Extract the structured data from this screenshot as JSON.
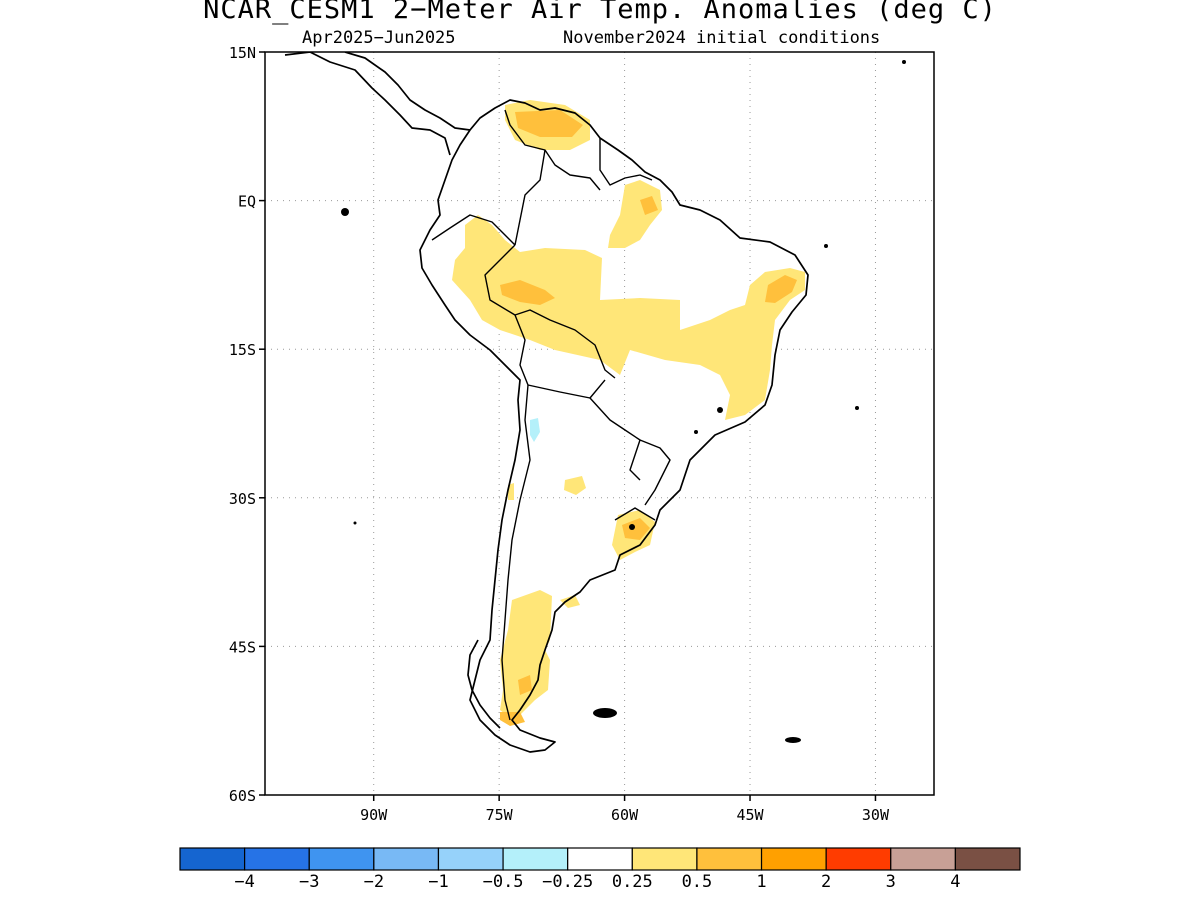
{
  "title": "NCAR_CESM1 2−Meter Air Temp. Anomalies (deg C)",
  "subtitle_left": "Apr2025−Jun2025",
  "subtitle_right": "November2024 initial conditions",
  "map": {
    "region": "South America",
    "lon_range": [
      -103,
      -23
    ],
    "lat_range": [
      -60,
      15
    ],
    "grid": "dotted",
    "y_ticks": [
      {
        "lat": 15,
        "label": "15N"
      },
      {
        "lat": 0,
        "label": "EQ"
      },
      {
        "lat": -15,
        "label": "15S"
      },
      {
        "lat": -30,
        "label": "30S"
      },
      {
        "lat": -45,
        "label": "45S"
      },
      {
        "lat": -60,
        "label": "60S"
      }
    ],
    "x_ticks": [
      {
        "lon": -90,
        "label": "90W"
      },
      {
        "lon": -75,
        "label": "75W"
      },
      {
        "lon": -60,
        "label": "60W"
      },
      {
        "lon": -45,
        "label": "45W"
      },
      {
        "lon": -30,
        "label": "30W"
      }
    ]
  },
  "colorbar": {
    "colors": [
      "#1565d0",
      "#2673e6",
      "#3f94f0",
      "#78b9f5",
      "#96d2fa",
      "#b4f0fa",
      "#ffffff",
      "#ffe678",
      "#ffc03c",
      "#ffa000",
      "#ff3c00",
      "#c8a096",
      "#7a5044"
    ],
    "labels": [
      "−4",
      "−3",
      "−2",
      "−1",
      "−0.5",
      "−0.25",
      "0.25",
      "0.5",
      "1",
      "2",
      "3",
      "4"
    ]
  },
  "legend_colors": {
    "anomaly_0_25_to_0_5": "#ffe678",
    "anomaly_0_5_to_1": "#ffc03c",
    "anomaly_neg_0_25_to_neg_0_5": "#b4f0fa"
  }
}
